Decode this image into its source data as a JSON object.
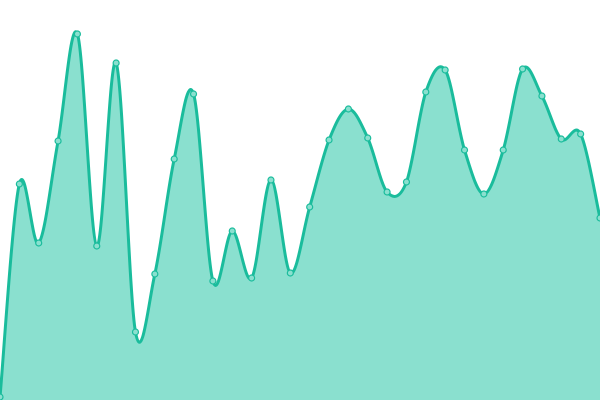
{
  "chart_data": {
    "type": "area",
    "title": "",
    "xlabel": "",
    "ylabel": "",
    "x": [
      0,
      1,
      2,
      3,
      4,
      5,
      6,
      7,
      8,
      9,
      10,
      11,
      12,
      13,
      14,
      15,
      16,
      17,
      18,
      19,
      20,
      21,
      22,
      23,
      24,
      25,
      26,
      27,
      28,
      29,
      30,
      31
    ],
    "series": [
      {
        "values": [
          3,
          216,
          157,
          259,
          366,
          154,
          337,
          68,
          126,
          241,
          306,
          119,
          169,
          122,
          220,
          127,
          193,
          260,
          291,
          262,
          208,
          218,
          308,
          330,
          250,
          206,
          250,
          331,
          304,
          261,
          266,
          182
        ]
      }
    ],
    "ylim": [
      0,
      400
    ],
    "grid": false,
    "axes_visible": false,
    "curve": "smooth",
    "colors": {
      "line": "#1abc9c",
      "fill": "#8ae0cf",
      "point": "#8ae0cf"
    }
  }
}
